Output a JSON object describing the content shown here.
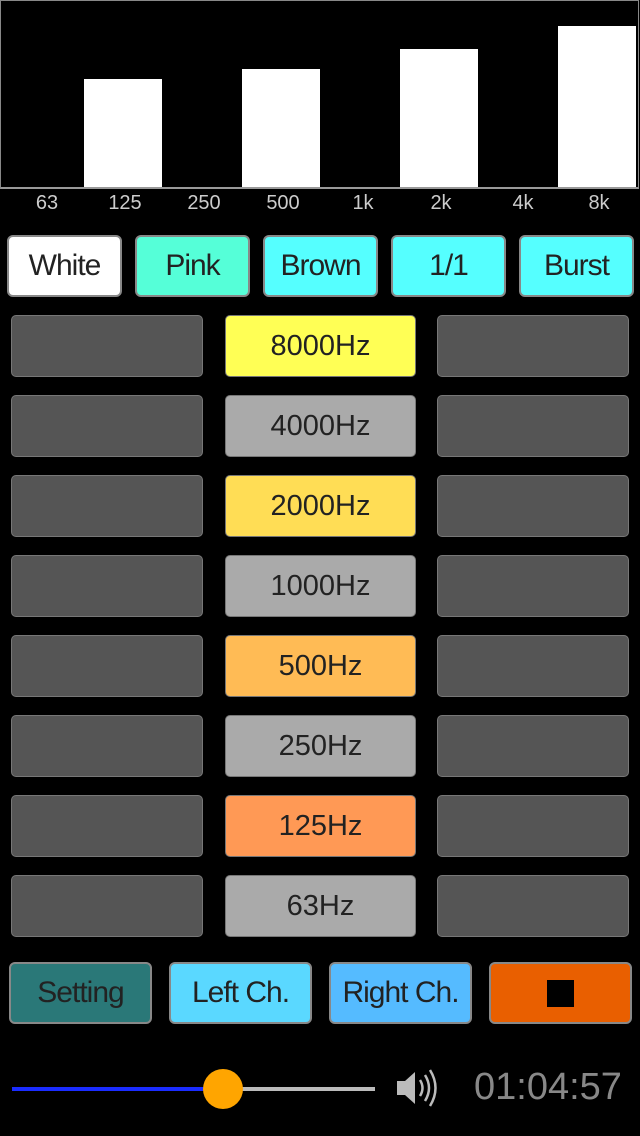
{
  "chart_data": {
    "type": "bar",
    "categories": [
      "63",
      "125",
      "250",
      "500",
      "1k",
      "2k",
      "4k",
      "8k"
    ],
    "values": [
      0,
      0.58,
      0,
      0.63,
      0,
      0.74,
      0,
      0.86
    ],
    "ylim": [
      0,
      1
    ],
    "grid": false,
    "bar_color": "#ffffff",
    "background": "#000000"
  },
  "noise_buttons": [
    {
      "label": "White",
      "color": "#ffffff"
    },
    {
      "label": "Pink",
      "color": "#55ffd8"
    },
    {
      "label": "Brown",
      "color": "#55ffff"
    },
    {
      "label": "1/1",
      "color": "#55ffff"
    },
    {
      "label": "Burst",
      "color": "#55ffff"
    }
  ],
  "bands": [
    {
      "label": "8000Hz",
      "color": "#ffff55"
    },
    {
      "label": "4000Hz",
      "color": "#aaaaaa"
    },
    {
      "label": "2000Hz",
      "color": "#ffdd55"
    },
    {
      "label": "1000Hz",
      "color": "#aaaaaa"
    },
    {
      "label": "500Hz",
      "color": "#ffbb55"
    },
    {
      "label": "250Hz",
      "color": "#aaaaaa"
    },
    {
      "label": "125Hz",
      "color": "#ff9955"
    },
    {
      "label": "63Hz",
      "color": "#aaaaaa"
    }
  ],
  "side_cell_color": "#555555",
  "bottom_buttons": [
    {
      "label": "Setting",
      "color": "#2a7878"
    },
    {
      "label": "Left Ch.",
      "color": "#5ad8ff"
    },
    {
      "label": "Right Ch.",
      "color": "#55bbff"
    },
    {
      "label": "",
      "icon": "stop-icon",
      "color": "#e95f00"
    }
  ],
  "volume": {
    "value": 0.58,
    "icon": "speaker-icon"
  },
  "timer": "01:04:57"
}
